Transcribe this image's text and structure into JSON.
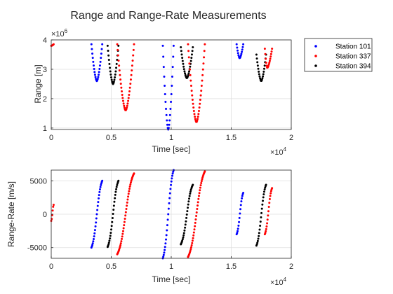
{
  "figure_title": "Range and Range-Rate Measurements",
  "colors": {
    "Station 101": "#0000ff",
    "Station 337": "#ff0000",
    "Station 394": "#000000",
    "axes_edge": "#262626",
    "grid": "#dfdfdf"
  },
  "legend": {
    "placement": "outside-top-right",
    "entries": [
      "Station 101",
      "Station 337",
      "Station 394"
    ]
  },
  "chart_data": [
    {
      "type": "scatter",
      "xlabel": "Time [sec]",
      "ylabel": "Range [m]",
      "x_exponent_label": "×10",
      "x_exponent_power": "4",
      "y_exponent_label": "×10",
      "y_exponent_power": "6",
      "x_scale": 10000,
      "y_scale": 1000000,
      "xlim": [
        0,
        20000
      ],
      "ylim": [
        950000,
        4000000
      ],
      "x_tick_values": [
        0,
        5000,
        10000,
        15000,
        20000
      ],
      "x_tick_labels": [
        "0",
        "0.5",
        "1",
        "1.5",
        "2"
      ],
      "y_tick_values": [
        1000000,
        2000000,
        3000000,
        4000000
      ],
      "y_tick_labels": [
        "1",
        "2",
        "3",
        "4"
      ],
      "grid": true,
      "passes": [
        {
          "series": "Station 337",
          "t_start": 0,
          "t_end": 200,
          "t_min": 0,
          "min": 3800000,
          "max": 3850000
        },
        {
          "series": "Station 101",
          "t_start": 3350,
          "t_end": 4250,
          "t_min": 3800,
          "min": 2600000,
          "max": 3850000
        },
        {
          "series": "Station 394",
          "t_start": 4700,
          "t_end": 5600,
          "t_min": 5150,
          "min": 2500000,
          "max": 3800000
        },
        {
          "series": "Station 337",
          "t_start": 5500,
          "t_end": 6900,
          "t_min": 6200,
          "min": 1600000,
          "max": 3850000
        },
        {
          "series": "Station 101",
          "t_start": 9300,
          "t_end": 10200,
          "t_min": 9750,
          "min": 950000,
          "max": 3800000
        },
        {
          "series": "Station 394",
          "t_start": 10800,
          "t_end": 11800,
          "t_min": 11300,
          "min": 2700000,
          "max": 3750000
        },
        {
          "series": "Station 337",
          "t_start": 11400,
          "t_end": 12800,
          "t_min": 12100,
          "min": 1200000,
          "max": 3850000
        },
        {
          "series": "Station 101",
          "t_start": 15450,
          "t_end": 16000,
          "t_min": 15700,
          "min": 3380000,
          "max": 3850000
        },
        {
          "series": "Station 394",
          "t_start": 17100,
          "t_end": 17900,
          "t_min": 17500,
          "min": 2600000,
          "max": 3500000
        },
        {
          "series": "Station 337",
          "t_start": 17800,
          "t_end": 18400,
          "t_min": 18000,
          "min": 3050000,
          "max": 3700000
        }
      ]
    },
    {
      "type": "scatter",
      "xlabel": "Time [sec]",
      "ylabel": "Range-Rate [m/s]",
      "x_exponent_label": "×10",
      "x_exponent_power": "4",
      "x_scale": 10000,
      "xlim": [
        0,
        20000
      ],
      "ylim": [
        -6600,
        6600
      ],
      "x_tick_values": [
        0,
        5000,
        10000,
        15000,
        20000
      ],
      "x_tick_labels": [
        "0",
        "0.5",
        "1",
        "1.5",
        "2"
      ],
      "y_tick_values": [
        -5000,
        0,
        5000
      ],
      "y_tick_labels": [
        "-5000",
        "0",
        "5000"
      ],
      "grid": true,
      "passes": [
        {
          "series": "Station 337",
          "t_start": 0,
          "t_end": 200,
          "v_start": -1000,
          "v_end": 1400
        },
        {
          "series": "Station 101",
          "t_start": 3350,
          "t_end": 4250,
          "v_start": -5000,
          "v_end": 5000
        },
        {
          "series": "Station 394",
          "t_start": 4700,
          "t_end": 5600,
          "v_start": -4900,
          "v_end": 5000
        },
        {
          "series": "Station 337",
          "t_start": 5500,
          "t_end": 6900,
          "v_start": -6000,
          "v_end": 6100
        },
        {
          "series": "Station 101",
          "t_start": 9300,
          "t_end": 10200,
          "v_start": -6600,
          "v_end": 6600
        },
        {
          "series": "Station 394",
          "t_start": 10800,
          "t_end": 11800,
          "v_start": -4500,
          "v_end": 4400
        },
        {
          "series": "Station 337",
          "t_start": 11400,
          "t_end": 12800,
          "v_start": -6400,
          "v_end": 6400
        },
        {
          "series": "Station 101",
          "t_start": 15450,
          "t_end": 16000,
          "v_start": -3000,
          "v_end": 3200
        },
        {
          "series": "Station 394",
          "t_start": 17100,
          "t_end": 17900,
          "v_start": -4700,
          "v_end": 4400
        },
        {
          "series": "Station 337",
          "t_start": 17800,
          "t_end": 18400,
          "v_start": -3000,
          "v_end": 3900
        }
      ]
    }
  ]
}
